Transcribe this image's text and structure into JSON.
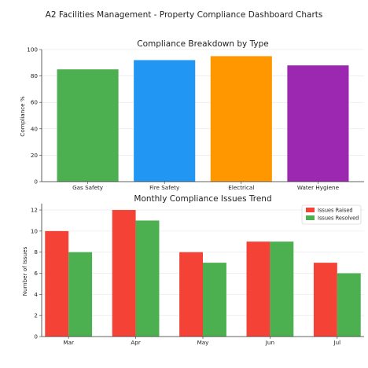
{
  "page_title": "A2 Facilities Management - Property Compliance Dashboard Charts",
  "chart_data": [
    {
      "type": "bar",
      "title": "Compliance Breakdown by Type",
      "xlabel": "",
      "ylabel": "Compliance %",
      "categories": [
        "Gas Safety",
        "Fire Safety",
        "Electrical",
        "Water Hygiene"
      ],
      "values": [
        85,
        92,
        95,
        88
      ],
      "colors": [
        "#4caf50",
        "#2196f3",
        "#ff9800",
        "#9c27b0"
      ],
      "ylim": [
        0,
        100
      ],
      "yticks": [
        0,
        20,
        40,
        60,
        80,
        100
      ],
      "grid": true,
      "legend": "none"
    },
    {
      "type": "bar",
      "title": "Monthly Compliance Issues Trend",
      "xlabel": "",
      "ylabel": "Number of Issues",
      "categories": [
        "Mar",
        "Apr",
        "May",
        "Jun",
        "Jul"
      ],
      "series": [
        {
          "name": "Issues Raised",
          "values": [
            10,
            12,
            8,
            9,
            7
          ],
          "color": "#f44336"
        },
        {
          "name": "Issues Resolved",
          "values": [
            8,
            11,
            7,
            9,
            6
          ],
          "color": "#4caf50"
        }
      ],
      "ylim": [
        0,
        12.6
      ],
      "yticks": [
        0,
        2,
        4,
        6,
        8,
        10,
        12
      ],
      "grid": true,
      "legend": "top-right"
    }
  ]
}
